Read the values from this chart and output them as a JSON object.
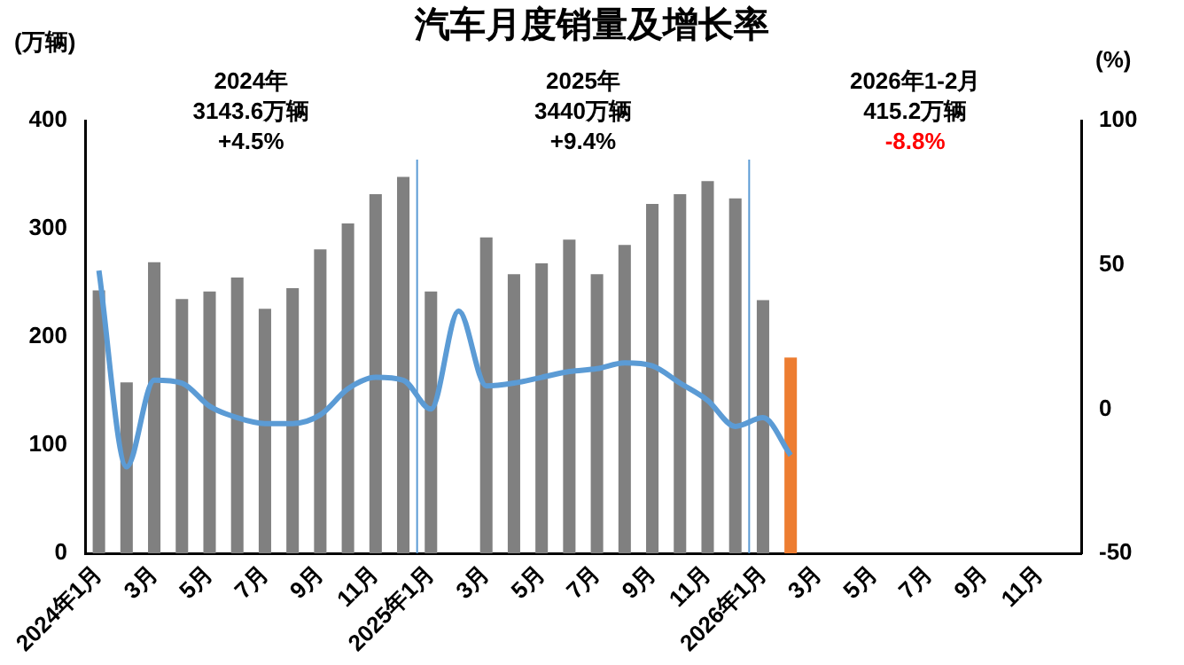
{
  "chart_data": {
    "type": "bar",
    "title": "汽车月度销量及增长率",
    "ylabel": "(万辆)",
    "y2label": "(%)",
    "categories": [
      "2024年1月",
      null,
      "3月",
      null,
      "5月",
      null,
      "7月",
      null,
      "9月",
      null,
      "11月",
      null,
      "2025年1月",
      null,
      "3月",
      null,
      "5月",
      null,
      "7月",
      null,
      "9月",
      null,
      "11月",
      null,
      "2026年1月",
      null,
      "3月",
      null,
      "5月",
      null,
      "7月",
      null,
      "9月",
      null,
      "11月",
      null
    ],
    "series": [
      {
        "colors": [
          "#808080",
          "#808080",
          "#808080",
          "#808080",
          "#808080",
          "#808080",
          "#808080",
          "#808080",
          "#808080",
          "#808080",
          "#808080",
          "#808080",
          "#808080",
          "#808080",
          "#808080",
          "#808080",
          "#808080",
          "#808080",
          "#808080",
          "#808080",
          "#808080",
          "#808080",
          "#808080",
          "#808080",
          "#808080",
          "#ed7d31",
          null,
          null,
          null,
          null,
          null,
          null,
          null,
          null,
          null,
          null
        ],
        "values": [
          243,
          158,
          269,
          235,
          242,
          255,
          226,
          245,
          281,
          305,
          332,
          348,
          242,
          null,
          292,
          258,
          268,
          290,
          258,
          285,
          323,
          332,
          344,
          328,
          234,
          181,
          null,
          null,
          null,
          null,
          null,
          null,
          null,
          null,
          null,
          null
        ]
      },
      {
        "type": "line",
        "axis": "y2",
        "color": "#5b9bd5",
        "values": [
          48,
          -20,
          10,
          9,
          1,
          -3,
          -5,
          -5,
          -2,
          7,
          11,
          10,
          0,
          34,
          8,
          9,
          11,
          13,
          14,
          16,
          15,
          9,
          3,
          -6,
          -3,
          -16,
          null,
          null,
          null,
          null,
          null,
          null,
          null,
          null,
          null,
          null
        ]
      }
    ],
    "ylim": [
      0,
      400
    ],
    "yticks": [
      0,
      100,
      200,
      300,
      400
    ],
    "y2lim": [
      -50,
      100
    ],
    "y2ticks": [
      -50,
      0,
      50,
      100
    ],
    "annotations": [
      "2024年",
      "3143.6万辆",
      "+4.5%",
      "2025年",
      "3440万辆",
      "+9.4%",
      "2026年1-2月",
      "415.2万辆",
      "-8.8%"
    ],
    "marker": "none",
    "grid": false,
    "legend": false
  }
}
